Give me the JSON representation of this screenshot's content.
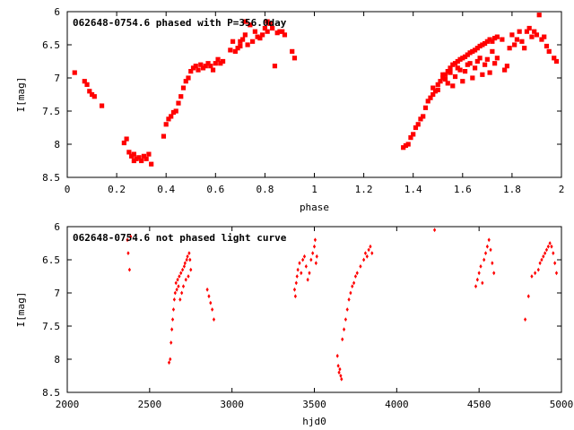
{
  "chart_data": [
    {
      "type": "scatter",
      "title": "062648-0754.6 phased with P=356.0day",
      "xlabel": "phase",
      "ylabel": "I[mag]",
      "xlim": [
        0,
        2
      ],
      "ylim": [
        8.5,
        6
      ],
      "y_inverted": true,
      "grid": false,
      "xticks": [
        "0",
        "0.2",
        "0.4",
        "0.6",
        "0.8",
        "1",
        "1.2",
        "1.4",
        "1.6",
        "1.8",
        "2"
      ],
      "yticks": [
        "6",
        "6.5",
        "7",
        "7.5",
        "8",
        "8.5"
      ],
      "marker_color": "#ff0000",
      "series": [
        {
          "points": [
            [
              0.03,
              6.92
            ],
            [
              0.07,
              7.05
            ],
            [
              0.08,
              7.1
            ],
            [
              0.09,
              7.2
            ],
            [
              0.1,
              7.25
            ],
            [
              0.11,
              7.28
            ],
            [
              0.14,
              7.42
            ],
            [
              0.23,
              7.98
            ],
            [
              0.24,
              7.92
            ],
            [
              0.25,
              8.12
            ],
            [
              0.26,
              8.18
            ],
            [
              0.27,
              8.15
            ],
            [
              0.27,
              8.25
            ],
            [
              0.28,
              8.22
            ],
            [
              0.29,
              8.2
            ],
            [
              0.3,
              8.25
            ],
            [
              0.31,
              8.18
            ],
            [
              0.32,
              8.22
            ],
            [
              0.33,
              8.15
            ],
            [
              0.34,
              8.3
            ],
            [
              0.39,
              7.88
            ],
            [
              0.4,
              7.7
            ],
            [
              0.41,
              7.62
            ],
            [
              0.42,
              7.58
            ],
            [
              0.43,
              7.52
            ],
            [
              0.44,
              7.5
            ],
            [
              0.45,
              7.38
            ],
            [
              0.46,
              7.28
            ],
            [
              0.47,
              7.15
            ],
            [
              0.48,
              7.05
            ],
            [
              0.49,
              7.0
            ],
            [
              0.5,
              6.9
            ],
            [
              0.51,
              6.85
            ],
            [
              0.52,
              6.82
            ],
            [
              0.53,
              6.88
            ],
            [
              0.54,
              6.8
            ],
            [
              0.55,
              6.85
            ],
            [
              0.56,
              6.82
            ],
            [
              0.57,
              6.78
            ],
            [
              0.58,
              6.82
            ],
            [
              0.59,
              6.88
            ],
            [
              0.6,
              6.78
            ],
            [
              0.61,
              6.72
            ],
            [
              0.62,
              6.78
            ],
            [
              0.63,
              6.75
            ],
            [
              0.66,
              6.58
            ],
            [
              0.67,
              6.45
            ],
            [
              0.68,
              6.6
            ],
            [
              0.69,
              6.55
            ],
            [
              0.7,
              6.52
            ],
            [
              0.7,
              6.45
            ],
            [
              0.71,
              6.42
            ],
            [
              0.72,
              6.35
            ],
            [
              0.72,
              6.15
            ],
            [
              0.73,
              6.5
            ],
            [
              0.74,
              6.2
            ],
            [
              0.75,
              6.45
            ],
            [
              0.76,
              6.3
            ],
            [
              0.77,
              6.38
            ],
            [
              0.78,
              6.4
            ],
            [
              0.79,
              6.35
            ],
            [
              0.8,
              6.25
            ],
            [
              0.81,
              6.3
            ],
            [
              0.81,
              6.15
            ],
            [
              0.82,
              6.18
            ],
            [
              0.83,
              6.25
            ],
            [
              0.84,
              6.82
            ],
            [
              0.85,
              6.32
            ],
            [
              0.86,
              6.3
            ],
            [
              0.87,
              6.3
            ],
            [
              0.88,
              6.35
            ],
            [
              0.91,
              6.6
            ],
            [
              0.92,
              6.7
            ],
            [
              1.36,
              8.05
            ],
            [
              1.37,
              8.02
            ],
            [
              1.38,
              8.0
            ],
            [
              1.39,
              7.9
            ],
            [
              1.4,
              7.85
            ],
            [
              1.41,
              7.75
            ],
            [
              1.42,
              7.7
            ],
            [
              1.43,
              7.62
            ],
            [
              1.44,
              7.58
            ],
            [
              1.45,
              7.45
            ],
            [
              1.46,
              7.35
            ],
            [
              1.47,
              7.3
            ],
            [
              1.48,
              7.25
            ],
            [
              1.49,
              7.2
            ],
            [
              1.5,
              7.1
            ],
            [
              1.51,
              7.05
            ],
            [
              1.52,
              7.0
            ],
            [
              1.53,
              6.95
            ],
            [
              1.54,
              6.9
            ],
            [
              1.55,
              6.85
            ],
            [
              1.56,
              6.8
            ],
            [
              1.57,
              6.78
            ],
            [
              1.58,
              6.75
            ],
            [
              1.59,
              6.72
            ],
            [
              1.6,
              6.7
            ],
            [
              1.61,
              6.68
            ],
            [
              1.62,
              6.65
            ],
            [
              1.63,
              6.62
            ],
            [
              1.64,
              6.6
            ],
            [
              1.65,
              6.58
            ],
            [
              1.66,
              6.55
            ],
            [
              1.67,
              6.52
            ],
            [
              1.68,
              6.5
            ],
            [
              1.69,
              6.48
            ],
            [
              1.7,
              6.45
            ],
            [
              1.71,
              6.42
            ],
            [
              1.72,
              6.45
            ],
            [
              1.73,
              6.4
            ],
            [
              1.74,
              6.38
            ],
            [
              1.52,
              6.95
            ],
            [
              1.55,
              6.92
            ],
            [
              1.58,
              6.85
            ],
            [
              1.62,
              6.8
            ],
            [
              1.66,
              6.75
            ],
            [
              1.7,
              6.72
            ],
            [
              1.74,
              6.7
            ],
            [
              1.56,
              7.12
            ],
            [
              1.6,
              7.05
            ],
            [
              1.64,
              7.0
            ],
            [
              1.68,
              6.95
            ],
            [
              1.71,
              6.92
            ],
            [
              1.5,
              7.18
            ],
            [
              1.54,
              7.08
            ],
            [
              1.57,
              6.98
            ],
            [
              1.61,
              6.9
            ],
            [
              1.65,
              6.85
            ],
            [
              1.69,
              6.8
            ],
            [
              1.73,
              6.78
            ],
            [
              1.48,
              7.15
            ],
            [
              1.53,
              7.02
            ],
            [
              1.59,
              6.88
            ],
            [
              1.63,
              6.78
            ],
            [
              1.67,
              6.7
            ],
            [
              1.72,
              6.6
            ],
            [
              1.76,
              6.42
            ],
            [
              1.77,
              6.88
            ],
            [
              1.78,
              6.82
            ],
            [
              1.79,
              6.55
            ],
            [
              1.8,
              6.35
            ],
            [
              1.81,
              6.5
            ],
            [
              1.82,
              6.42
            ],
            [
              1.83,
              6.3
            ],
            [
              1.84,
              6.45
            ],
            [
              1.85,
              6.55
            ],
            [
              1.86,
              6.3
            ],
            [
              1.87,
              6.25
            ],
            [
              1.88,
              6.38
            ],
            [
              1.89,
              6.3
            ],
            [
              1.9,
              6.35
            ],
            [
              1.91,
              6.05
            ],
            [
              1.92,
              6.42
            ],
            [
              1.93,
              6.38
            ],
            [
              1.94,
              6.52
            ],
            [
              1.95,
              6.6
            ],
            [
              1.97,
              6.7
            ],
            [
              1.98,
              6.75
            ]
          ]
        }
      ]
    },
    {
      "type": "scatter",
      "title": "062648-0754.6 not phased light curve",
      "xlabel": "hjd0",
      "ylabel": "I[mag]",
      "xlim": [
        2000,
        5000
      ],
      "ylim": [
        8.5,
        6
      ],
      "y_inverted": true,
      "grid": false,
      "xticks": [
        "2000",
        "2500",
        "3000",
        "3500",
        "4000",
        "4500",
        "5000"
      ],
      "yticks": [
        "6",
        "6.5",
        "7",
        "7.5",
        "8",
        "8.5"
      ],
      "marker_color": "#ff0000",
      "series": [
        {
          "points": [
            [
              2365,
              6.2
            ],
            [
              2370,
              6.4
            ],
            [
              2378,
              6.65
            ],
            [
              2385,
              6.15
            ],
            [
              2618,
              8.05
            ],
            [
              2625,
              8.0
            ],
            [
              2630,
              7.75
            ],
            [
              2635,
              7.55
            ],
            [
              2640,
              7.4
            ],
            [
              2645,
              7.25
            ],
            [
              2650,
              7.1
            ],
            [
              2655,
              7.0
            ],
            [
              2660,
              6.85
            ],
            [
              2665,
              6.95
            ],
            [
              2670,
              6.8
            ],
            [
              2675,
              6.9
            ],
            [
              2680,
              6.75
            ],
            [
              2685,
              7.1
            ],
            [
              2690,
              6.7
            ],
            [
              2695,
              7.0
            ],
            [
              2700,
              6.65
            ],
            [
              2705,
              6.9
            ],
            [
              2710,
              6.6
            ],
            [
              2715,
              6.55
            ],
            [
              2720,
              6.8
            ],
            [
              2725,
              6.5
            ],
            [
              2730,
              6.45
            ],
            [
              2735,
              6.75
            ],
            [
              2740,
              6.4
            ],
            [
              2745,
              6.5
            ],
            [
              2750,
              6.65
            ],
            [
              2850,
              6.95
            ],
            [
              2860,
              7.05
            ],
            [
              2870,
              7.15
            ],
            [
              2880,
              7.25
            ],
            [
              2890,
              7.4
            ],
            [
              3380,
              6.95
            ],
            [
              3385,
              7.05
            ],
            [
              3390,
              6.85
            ],
            [
              3395,
              6.75
            ],
            [
              3400,
              6.65
            ],
            [
              3410,
              6.55
            ],
            [
              3420,
              6.7
            ],
            [
              3430,
              6.5
            ],
            [
              3440,
              6.45
            ],
            [
              3450,
              6.6
            ],
            [
              3460,
              6.8
            ],
            [
              3470,
              6.7
            ],
            [
              3480,
              6.5
            ],
            [
              3490,
              6.4
            ],
            [
              3500,
              6.3
            ],
            [
              3505,
              6.2
            ],
            [
              3510,
              6.55
            ],
            [
              3515,
              6.45
            ],
            [
              3640,
              7.95
            ],
            [
              3645,
              8.1
            ],
            [
              3650,
              8.2
            ],
            [
              3655,
              8.15
            ],
            [
              3660,
              8.25
            ],
            [
              3665,
              8.3
            ],
            [
              3670,
              7.7
            ],
            [
              3680,
              7.55
            ],
            [
              3690,
              7.4
            ],
            [
              3700,
              7.25
            ],
            [
              3710,
              7.1
            ],
            [
              3720,
              7.0
            ],
            [
              3730,
              6.9
            ],
            [
              3740,
              6.85
            ],
            [
              3750,
              6.75
            ],
            [
              3760,
              6.7
            ],
            [
              3780,
              6.6
            ],
            [
              3800,
              6.5
            ],
            [
              3810,
              6.4
            ],
            [
              3820,
              6.45
            ],
            [
              3830,
              6.35
            ],
            [
              3840,
              6.3
            ],
            [
              3850,
              6.4
            ],
            [
              4230,
              6.05
            ],
            [
              4480,
              6.9
            ],
            [
              4490,
              6.8
            ],
            [
              4500,
              6.7
            ],
            [
              4510,
              6.6
            ],
            [
              4520,
              6.85
            ],
            [
              4530,
              6.5
            ],
            [
              4540,
              6.4
            ],
            [
              4550,
              6.3
            ],
            [
              4560,
              6.2
            ],
            [
              4570,
              6.35
            ],
            [
              4580,
              6.55
            ],
            [
              4590,
              6.7
            ],
            [
              4780,
              7.4
            ],
            [
              4800,
              7.05
            ],
            [
              4820,
              6.75
            ],
            [
              4840,
              6.7
            ],
            [
              4860,
              6.65
            ],
            [
              4870,
              6.55
            ],
            [
              4880,
              6.5
            ],
            [
              4890,
              6.45
            ],
            [
              4900,
              6.4
            ],
            [
              4910,
              6.35
            ],
            [
              4920,
              6.3
            ],
            [
              4930,
              6.25
            ],
            [
              4940,
              6.3
            ],
            [
              4950,
              6.4
            ],
            [
              4960,
              6.55
            ],
            [
              4970,
              6.7
            ]
          ]
        }
      ]
    }
  ]
}
